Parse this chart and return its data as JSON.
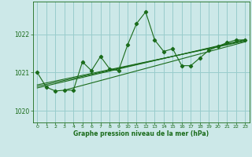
{
  "title": "Graphe pression niveau de la mer (hPa)",
  "bg_color": "#cce8e8",
  "plot_bg_color": "#cce8e8",
  "grid_color": "#99cccc",
  "line_color": "#1a6b1a",
  "xlim": [
    -0.5,
    23.5
  ],
  "ylim": [
    1019.7,
    1022.85
  ],
  "yticks": [
    1020,
    1021,
    1022
  ],
  "xticks": [
    0,
    1,
    2,
    3,
    4,
    5,
    6,
    7,
    8,
    9,
    10,
    11,
    12,
    13,
    14,
    15,
    16,
    17,
    18,
    19,
    20,
    21,
    22,
    23
  ],
  "main_series": [
    [
      0,
      1021.0
    ],
    [
      1,
      1020.62
    ],
    [
      2,
      1020.52
    ],
    [
      3,
      1020.54
    ],
    [
      4,
      1020.54
    ],
    [
      5,
      1021.28
    ],
    [
      6,
      1021.05
    ],
    [
      7,
      1021.42
    ],
    [
      8,
      1021.1
    ],
    [
      9,
      1021.05
    ],
    [
      10,
      1021.72
    ],
    [
      11,
      1022.28
    ],
    [
      12,
      1022.58
    ],
    [
      13,
      1021.85
    ],
    [
      14,
      1021.55
    ],
    [
      15,
      1021.62
    ],
    [
      16,
      1021.18
    ],
    [
      17,
      1021.18
    ],
    [
      18,
      1021.38
    ],
    [
      19,
      1021.58
    ],
    [
      20,
      1021.68
    ],
    [
      21,
      1021.78
    ],
    [
      22,
      1021.85
    ],
    [
      23,
      1021.85
    ]
  ],
  "trend_lines": [
    [
      [
        0,
        1020.68
      ],
      [
        23,
        1021.82
      ]
    ],
    [
      [
        0,
        1020.64
      ],
      [
        23,
        1021.84
      ]
    ],
    [
      [
        0,
        1020.6
      ],
      [
        23,
        1021.86
      ]
    ],
    [
      [
        3,
        1020.54
      ],
      [
        23,
        1021.8
      ]
    ]
  ]
}
